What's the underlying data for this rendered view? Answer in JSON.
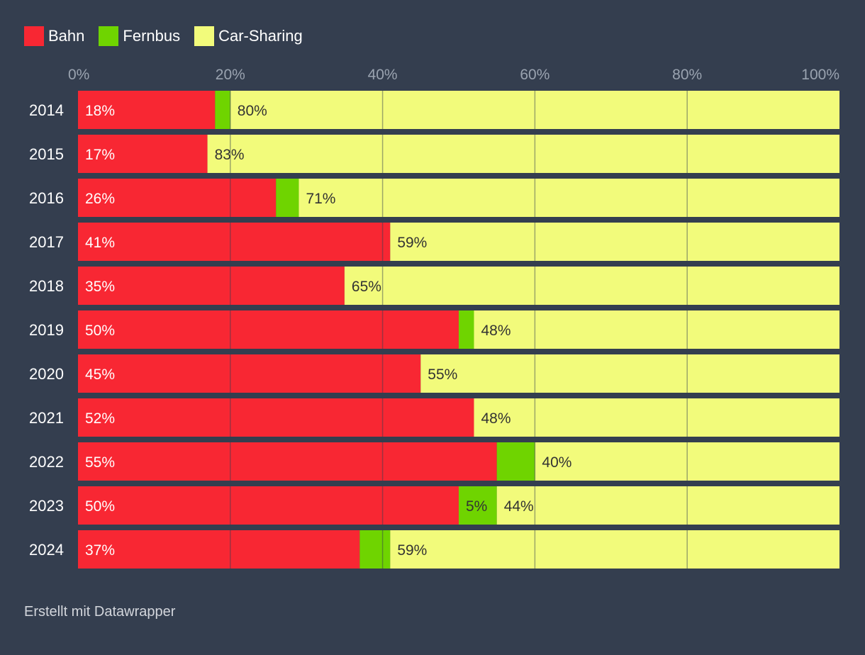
{
  "chart_data": {
    "type": "bar",
    "orientation": "horizontal",
    "stacked": true,
    "categories": [
      "2014",
      "2015",
      "2016",
      "2017",
      "2018",
      "2019",
      "2020",
      "2021",
      "2022",
      "2023",
      "2024"
    ],
    "series": [
      {
        "name": "Bahn",
        "color": "#f82733",
        "values": [
          18,
          17,
          26,
          41,
          35,
          50,
          45,
          52,
          55,
          50,
          37
        ]
      },
      {
        "name": "Fernbus",
        "color": "#6fd400",
        "values": [
          2,
          0,
          3,
          0,
          0,
          2,
          0,
          0,
          5,
          5,
          4
        ]
      },
      {
        "name": "Car-Sharing",
        "color": "#f2fb7b",
        "values": [
          80,
          83,
          71,
          59,
          65,
          48,
          55,
          48,
          40,
          44,
          59
        ]
      }
    ],
    "labels": {
      "Bahn": [
        "18%",
        "17%",
        "26%",
        "41%",
        "35%",
        "50%",
        "45%",
        "52%",
        "55%",
        "50%",
        "37%"
      ],
      "Fernbus": [
        "",
        "",
        "",
        "",
        "",
        "",
        "",
        "",
        "",
        "5%",
        ""
      ],
      "Car-Sharing": [
        "80%",
        "83%",
        "71%",
        "59%",
        "65%",
        "48%",
        "55%",
        "48%",
        "40%",
        "44%",
        "59%"
      ]
    },
    "x_ticks": [
      0,
      20,
      40,
      60,
      80,
      100
    ],
    "x_tick_labels": [
      "0%",
      "20%",
      "40%",
      "60%",
      "80%",
      "100%"
    ],
    "xlim": [
      0,
      100
    ],
    "grid": true,
    "legend_position": "top-left",
    "title": "",
    "xlabel": "",
    "ylabel": ""
  },
  "footer": {
    "credit": "Erstellt mit Datawrapper"
  }
}
